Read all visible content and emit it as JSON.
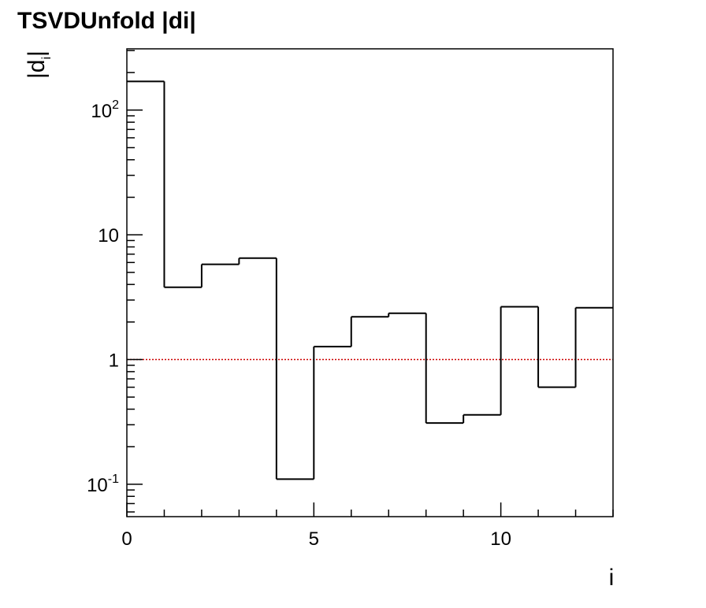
{
  "chart_data": {
    "type": "histogram",
    "title": "TSVDUnfold |di|",
    "xlabel": "i",
    "ylabel": "|d_i|",
    "ylabel_base": "|d",
    "ylabel_sub": "i",
    "ylabel_close": "|",
    "xlim": [
      0,
      13
    ],
    "ylim": [
      0.055,
      310
    ],
    "yscale": "log",
    "grid": false,
    "bin_edges": [
      0,
      1,
      2,
      3,
      4,
      5,
      6,
      7,
      8,
      9,
      10,
      11,
      12,
      13
    ],
    "values": [
      170,
      3.8,
      5.8,
      6.5,
      0.11,
      1.27,
      2.2,
      2.35,
      0.31,
      0.36,
      2.65,
      0.6,
      2.6
    ],
    "reference_line": {
      "y": 1,
      "color": "#cc0000",
      "style": "dotted"
    },
    "line_color": "#000000",
    "x_ticks": [
      {
        "value": 0,
        "label": "0"
      },
      {
        "value": 5,
        "label": "5"
      },
      {
        "value": 10,
        "label": "10"
      }
    ],
    "y_ticks": [
      {
        "value": 0.1,
        "base": "10",
        "exp": "-1"
      },
      {
        "value": 1,
        "base": "1",
        "exp": ""
      },
      {
        "value": 10,
        "base": "10",
        "exp": ""
      },
      {
        "value": 100,
        "base": "10",
        "exp": "2"
      }
    ]
  }
}
